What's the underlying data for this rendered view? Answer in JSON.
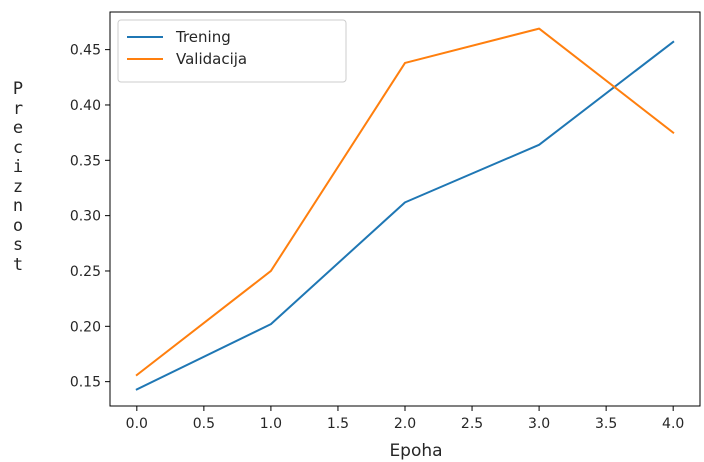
{
  "chart_data": {
    "type": "line",
    "x": [
      0.0,
      1.0,
      2.0,
      3.0,
      4.0
    ],
    "series": [
      {
        "name": "Trening",
        "color": "#1f77b4",
        "values": [
          0.143,
          0.202,
          0.312,
          0.364,
          0.457
        ]
      },
      {
        "name": "Validacija",
        "color": "#ff7f0e",
        "values": [
          0.156,
          0.25,
          0.438,
          0.469,
          0.375
        ]
      }
    ],
    "xlabel": "Epoha",
    "ylabel": "Preciznost",
    "xlim": [
      -0.2,
      4.2
    ],
    "ylim": [
      0.128,
      0.484
    ],
    "xticks": [
      "0.0",
      "0.5",
      "1.0",
      "1.5",
      "2.0",
      "2.5",
      "3.0",
      "3.5",
      "4.0"
    ],
    "yticks": [
      "0.15",
      "0.20",
      "0.25",
      "0.30",
      "0.35",
      "0.40",
      "0.45"
    ],
    "grid": false,
    "legend_position": "upper-left"
  }
}
